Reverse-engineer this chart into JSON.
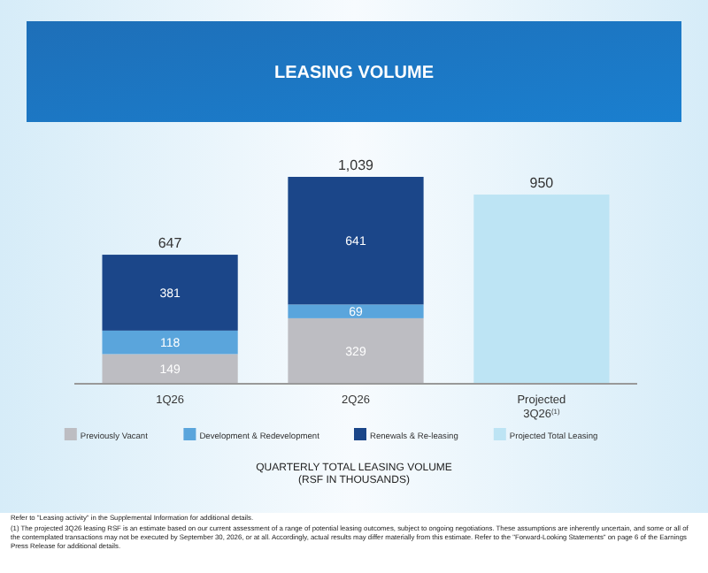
{
  "chart_data": {
    "type": "bar",
    "title": "LEASING VOLUME",
    "xlabel": "QUARTERLY TOTAL LEASING VOLUME\n(RSF IN THOUSANDS)",
    "categories": [
      "1Q26",
      "2Q26",
      "Projected\n3Q26$^{(1)}$"
    ],
    "stacked": true,
    "data_labels": true,
    "legend": "bottom",
    "totals": [
      "647",
      "1,039",
      null
    ],
    "series": [
      {
        "name": "Previously Vacant",
        "color": "#bdbdc2",
        "values": [
          149,
          329,
          null
        ]
      },
      {
        "name": "Development & Redevelopment",
        "color": "#5aa5dc",
        "values": [
          118,
          69,
          null
        ]
      },
      {
        "name": "Renewals & Re-leasing",
        "color": "#1b4689",
        "values": [
          381,
          641,
          null
        ]
      },
      {
        "name": "Projected Total Leasing",
        "color": "#bde4f4",
        "values": [
          null,
          null,
          950
        ]
      }
    ],
    "annotations": [
      "Refer to \"Leasing activity\" in the Supplemental Information for additional details.",
      "(1) The projected 3Q26 leasing RSF is an estimate based on our current assessment of a range of potential leasing outcomes, subject to ongoing negotiations. These assumptions are inherently uncertain, and some or all of the contemplated transactions may not be executed by September 30, 2026, or at all. Accordingly, actual results may differ materially from this estimate. Refer to the \"Forward-Looking Statements\" on page 6 of the Earnings Press Release for additional details."
    ]
  }
}
